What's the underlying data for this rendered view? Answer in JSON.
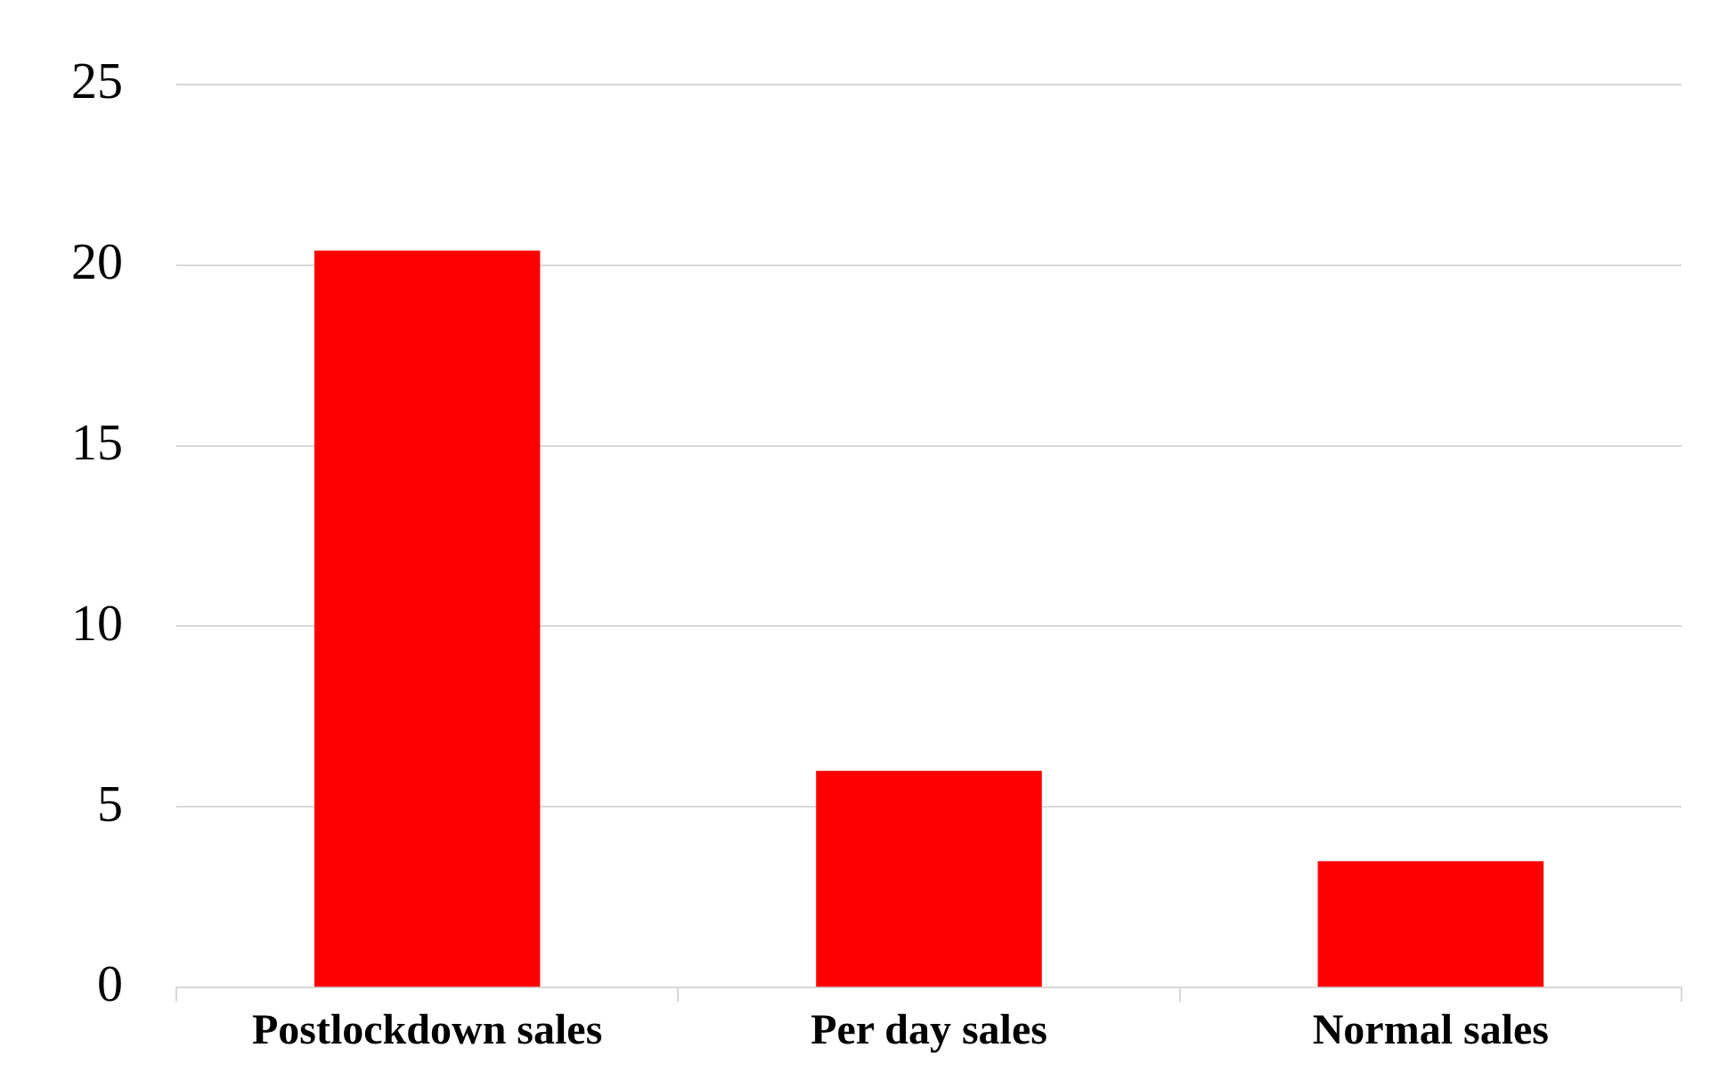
{
  "chart_data": {
    "type": "bar",
    "categories": [
      "Postlockdown sales",
      "Per day sales",
      "Normal sales"
    ],
    "values": [
      20.4,
      6,
      3.5
    ],
    "color": "#ff0000",
    "ylim": [
      0,
      25
    ],
    "yticks": [
      0,
      5,
      10,
      15,
      20,
      25
    ],
    "grid": "y"
  }
}
